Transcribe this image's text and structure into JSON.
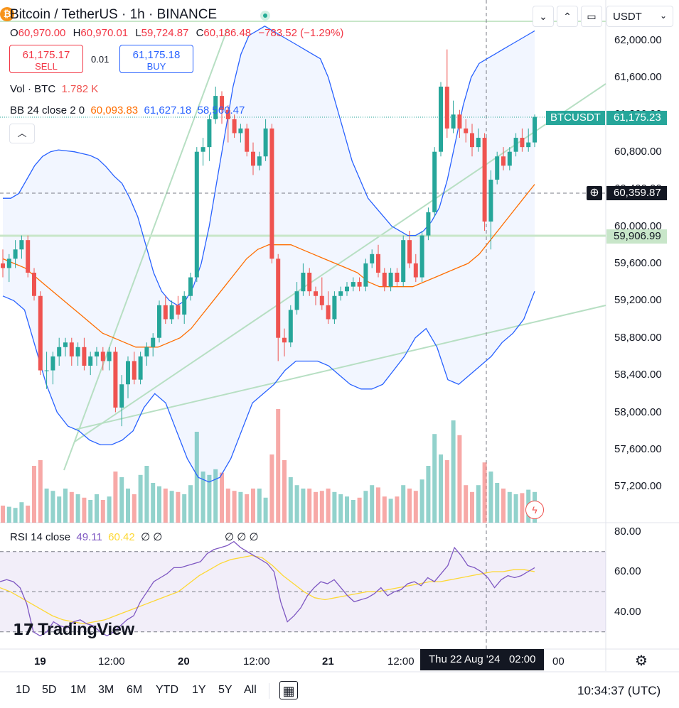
{
  "header": {
    "coin_icon": "bitcoin-icon",
    "title": "Bitcoin / TetherUS · 1h · BINANCE",
    "ohlc": {
      "o_key": "O",
      "o": "60,970.00",
      "h_key": "H",
      "h": "60,970.01",
      "l_key": "L",
      "l": "59,724.87",
      "c_key": "C",
      "c": "60,186.48",
      "change": "−783.52 (−1.29%)"
    }
  },
  "trade": {
    "sell_price": "61,175.17",
    "sell_label": "SELL",
    "spread": "0.01",
    "buy_price": "61,175.18",
    "buy_label": "BUY"
  },
  "legends": {
    "vol": {
      "label": "Vol · BTC",
      "value": "1.782 K"
    },
    "bb": {
      "label": "BB 24 close 2 0",
      "basis": "60,093.83",
      "upper": "61,627.18",
      "lower": "58,560.47"
    },
    "rsi": {
      "label": "RSI 14 close",
      "rsi": "49.11",
      "ma": "60.42",
      "empty": "∅ ∅",
      "empty2": "∅ ∅ ∅"
    }
  },
  "toolbar": {
    "down_icon": "chevron-down-icon",
    "collapse_icon": "collapse-icon",
    "fullscreen_icon": "fullscreen-icon",
    "currency": "USDT",
    "collapse_legend_icon": "chevron-up-icon"
  },
  "price_axis": [
    "62,000.00",
    "61,600.00",
    "61,200.00",
    "60,800.00",
    "60,400.00",
    "60,000.00",
    "59,600.00",
    "59,200.00",
    "58,800.00",
    "58,400.00",
    "58,000.00",
    "57,600.00",
    "57,200.00"
  ],
  "rsi_axis": [
    "80.00",
    "60.00",
    "40.00"
  ],
  "tags": {
    "symbol": "BTCUSDT",
    "last_price": "61,175.23",
    "cursor_price": "60,359.87",
    "level_price": "59,906.99"
  },
  "time_axis": {
    "labels": [
      "19",
      "12:00",
      "20",
      "12:00",
      "21",
      "12:00"
    ],
    "crosshair": "Thu 22 Aug '24   02:00",
    "tail": "00"
  },
  "bottom": {
    "timeframes": [
      "1D",
      "5D",
      "1M",
      "3M",
      "6M",
      "YTD",
      "1Y",
      "5Y",
      "All"
    ],
    "clock": "10:34:37 (UTC)",
    "calendar_icon": "calendar-range-icon",
    "settings_icon": "gear-icon"
  },
  "watermark": "TradingView",
  "colors": {
    "up": "#26a69a",
    "down": "#ef5350",
    "bb_band": "#2962ff",
    "bb_basis": "#ff6d00",
    "rsi": "#7e57c2",
    "rsi_ma": "#fdd835",
    "trendline": "#b7dfc3"
  },
  "chart_data": {
    "type": "candlestick",
    "symbol": "BTCUSDT",
    "interval": "1h",
    "ylim": [
      56900,
      62300
    ],
    "candles": [
      [
        59600,
        59750,
        59450,
        59550
      ],
      [
        59550,
        59700,
        59400,
        59650
      ],
      [
        59650,
        59850,
        59550,
        59750
      ],
      [
        59750,
        59900,
        59650,
        59850
      ],
      [
        59850,
        59900,
        59450,
        59500
      ],
      [
        59500,
        59550,
        59200,
        59250
      ],
      [
        59250,
        59300,
        58400,
        58450
      ],
      [
        58450,
        58650,
        58250,
        58450
      ],
      [
        58450,
        58650,
        58300,
        58600
      ],
      [
        58600,
        58800,
        58500,
        58700
      ],
      [
        58700,
        58800,
        58600,
        58750
      ],
      [
        58750,
        58800,
        58500,
        58600
      ],
      [
        58600,
        58750,
        58500,
        58700
      ],
      [
        58700,
        58800,
        58450,
        58500
      ],
      [
        58500,
        58650,
        58400,
        58600
      ],
      [
        58600,
        58700,
        58500,
        58650
      ],
      [
        58650,
        58700,
        58450,
        58550
      ],
      [
        58550,
        58700,
        58450,
        58650
      ],
      [
        58650,
        58700,
        58000,
        58050
      ],
      [
        58050,
        58400,
        57850,
        58300
      ],
      [
        58300,
        58600,
        58150,
        58550
      ],
      [
        58550,
        58650,
        58300,
        58350
      ],
      [
        58350,
        58650,
        58300,
        58600
      ],
      [
        58600,
        58750,
        58500,
        58700
      ],
      [
        58700,
        58850,
        58600,
        58800
      ],
      [
        58800,
        59200,
        58750,
        59150
      ],
      [
        59150,
        59250,
        58950,
        59000
      ],
      [
        59000,
        59200,
        58950,
        59150
      ],
      [
        59150,
        59250,
        59000,
        59050
      ],
      [
        59050,
        59300,
        58950,
        59250
      ],
      [
        59250,
        59500,
        59200,
        59450
      ],
      [
        59450,
        60850,
        59400,
        60800
      ],
      [
        60800,
        60950,
        60650,
        60850
      ],
      [
        60850,
        61200,
        60700,
        61150
      ],
      [
        61150,
        61500,
        61100,
        61400
      ],
      [
        61400,
        61450,
        61100,
        61250
      ],
      [
        61250,
        61300,
        60900,
        61150
      ],
      [
        61150,
        61200,
        60950,
        61000
      ],
      [
        61000,
        61100,
        60900,
        61050
      ],
      [
        61050,
        61100,
        60750,
        60800
      ],
      [
        60800,
        60900,
        60550,
        60650
      ],
      [
        60650,
        60800,
        60600,
        60750
      ],
      [
        60750,
        61150,
        60700,
        61050
      ],
      [
        61050,
        61100,
        59600,
        59650
      ],
      [
        59650,
        59700,
        58550,
        58800
      ],
      [
        58800,
        58900,
        58600,
        58750
      ],
      [
        58750,
        59150,
        58700,
        59100
      ],
      [
        59100,
        59400,
        59050,
        59300
      ],
      [
        59300,
        59600,
        59250,
        59500
      ],
      [
        59500,
        59550,
        59250,
        59300
      ],
      [
        59300,
        59350,
        59150,
        59250
      ],
      [
        59250,
        59450,
        59100,
        59150
      ],
      [
        59150,
        59300,
        58950,
        59000
      ],
      [
        59000,
        59300,
        58950,
        59250
      ],
      [
        59250,
        59350,
        59200,
        59300
      ],
      [
        59300,
        59400,
        59250,
        59350
      ],
      [
        59350,
        59450,
        59300,
        59400
      ],
      [
        59400,
        59450,
        59300,
        59350
      ],
      [
        59350,
        59650,
        59300,
        59600
      ],
      [
        59600,
        59750,
        59550,
        59700
      ],
      [
        59700,
        59800,
        59450,
        59500
      ],
      [
        59500,
        59550,
        59300,
        59350
      ],
      [
        59350,
        59550,
        59300,
        59500
      ],
      [
        59500,
        59550,
        59350,
        59400
      ],
      [
        59400,
        59900,
        59350,
        59850
      ],
      [
        59850,
        59950,
        59550,
        59600
      ],
      [
        59600,
        59700,
        59400,
        59450
      ],
      [
        59450,
        59950,
        59400,
        59900
      ],
      [
        59900,
        60200,
        59850,
        60150
      ],
      [
        60150,
        60850,
        60100,
        60800
      ],
      [
        60800,
        61550,
        60750,
        61500
      ],
      [
        61500,
        61900,
        60950,
        61050
      ],
      [
        61050,
        61350,
        61000,
        61200
      ],
      [
        61200,
        61250,
        60950,
        61050
      ],
      [
        61050,
        61150,
        60900,
        61000
      ],
      [
        61000,
        61100,
        60750,
        60850
      ],
      [
        60850,
        61050,
        60800,
        60950
      ],
      [
        60950,
        61000,
        59950,
        60050
      ],
      [
        60050,
        60600,
        59750,
        60500
      ],
      [
        60500,
        60800,
        60450,
        60750
      ],
      [
        60750,
        60850,
        60600,
        60650
      ],
      [
        60650,
        60850,
        60600,
        60800
      ],
      [
        60800,
        61000,
        60750,
        60950
      ],
      [
        60950,
        61050,
        60800,
        60850
      ],
      [
        60850,
        61050,
        60800,
        60900
      ],
      [
        60900,
        61200,
        60850,
        61175
      ]
    ],
    "volume": [
      0.15,
      0.14,
      0.13,
      0.18,
      0.15,
      0.5,
      0.55,
      0.3,
      0.28,
      0.23,
      0.3,
      0.27,
      0.25,
      0.22,
      0.2,
      0.25,
      0.2,
      0.23,
      0.45,
      0.4,
      0.3,
      0.25,
      0.42,
      0.5,
      0.35,
      0.32,
      0.3,
      0.28,
      0.27,
      0.25,
      0.33,
      0.8,
      0.45,
      0.42,
      0.47,
      0.44,
      0.3,
      0.28,
      0.27,
      0.25,
      0.3,
      0.3,
      0.22,
      0.6,
      1.0,
      0.55,
      0.4,
      0.33,
      0.3,
      0.3,
      0.27,
      0.28,
      0.3,
      0.27,
      0.25,
      0.23,
      0.2,
      0.22,
      0.28,
      0.33,
      0.31,
      0.23,
      0.21,
      0.23,
      0.33,
      0.3,
      0.28,
      0.38,
      0.5,
      0.78,
      0.6,
      0.55,
      0.9,
      0.77,
      0.33,
      0.27,
      0.33,
      0.53,
      0.45,
      0.35,
      0.3,
      0.27,
      0.25,
      0.26,
      0.29,
      0.27
    ],
    "bb_upper": [
      60300,
      60300,
      60350,
      60500,
      60650,
      60750,
      60800,
      60820,
      60810,
      60800,
      60780,
      60760,
      60720,
      60640,
      60540,
      60460,
      60300,
      60100,
      59800,
      59500,
      59300,
      59200,
      59150,
      59200,
      59350,
      59600,
      60000,
      60500,
      61000,
      61500,
      61850,
      62050,
      62100,
      62150,
      62100,
      62050,
      62000,
      61950,
      61900,
      61850,
      61800,
      61600,
      61300,
      61000,
      60700,
      60500,
      60300,
      60200,
      60100,
      60000,
      59950,
      59900,
      59900,
      59950,
      60050,
      60200,
      60500,
      60900,
      61300,
      61600,
      61750,
      61800,
      61850,
      61900,
      61950,
      62000,
      62050,
      62100
    ],
    "bb_basis": [
      59650,
      59600,
      59550,
      59450,
      59350,
      59250,
      59150,
      59050,
      58950,
      58850,
      58800,
      58750,
      58700,
      58700,
      58700,
      58750,
      58800,
      58900,
      59050,
      59200,
      59350,
      59500,
      59650,
      59750,
      59800,
      59800,
      59800,
      59750,
      59700,
      59650,
      59600,
      59550,
      59500,
      59400,
      59350,
      59350,
      59350,
      59350,
      59400,
      59450,
      59500,
      59550,
      59600,
      59700,
      59850,
      60000,
      60150,
      60300,
      60450
    ],
    "bb_lower": [
      59250,
      59200,
      59100,
      58700,
      58300,
      58000,
      57850,
      57800,
      57700,
      57650,
      57650,
      57700,
      57800,
      58050,
      58200,
      58100,
      57800,
      57500,
      57300,
      57250,
      57300,
      57500,
      57800,
      58100,
      58200,
      58300,
      58450,
      58550,
      58550,
      58550,
      58500,
      58400,
      58300,
      58250,
      58250,
      58300,
      58450,
      58600,
      58800,
      58900,
      58700,
      58350,
      58300,
      58400,
      58500,
      58600,
      58750,
      58850,
      59000,
      59300
    ],
    "rsi": [
      55,
      56,
      55,
      52,
      44,
      30,
      28,
      30,
      35,
      33,
      32,
      35,
      36,
      34,
      33,
      30,
      28,
      30,
      33,
      36,
      38,
      45,
      50,
      55,
      57,
      59,
      62,
      62,
      63,
      64,
      65,
      69,
      71,
      72,
      73,
      75,
      72,
      70,
      68,
      66,
      64,
      60,
      45,
      35,
      38,
      42,
      48,
      52,
      55,
      54,
      56,
      52,
      48,
      45,
      46,
      47,
      49,
      52,
      48,
      50,
      51,
      54,
      55,
      53,
      57,
      55,
      59,
      63,
      72,
      68,
      63,
      62,
      60,
      57,
      52,
      56,
      58,
      57,
      58,
      60,
      62
    ],
    "rsi_ma": [
      52,
      50,
      47,
      44,
      41,
      38,
      36,
      35,
      34,
      35,
      36,
      38,
      40,
      42,
      44,
      46,
      48,
      50,
      54,
      58,
      61,
      64,
      66,
      67,
      68,
      67,
      63,
      58,
      54,
      50,
      47,
      46,
      47,
      48,
      49,
      50,
      50,
      51,
      52,
      53,
      54,
      55,
      55,
      56,
      57,
      58,
      59,
      60,
      60,
      61,
      61,
      60
    ]
  }
}
